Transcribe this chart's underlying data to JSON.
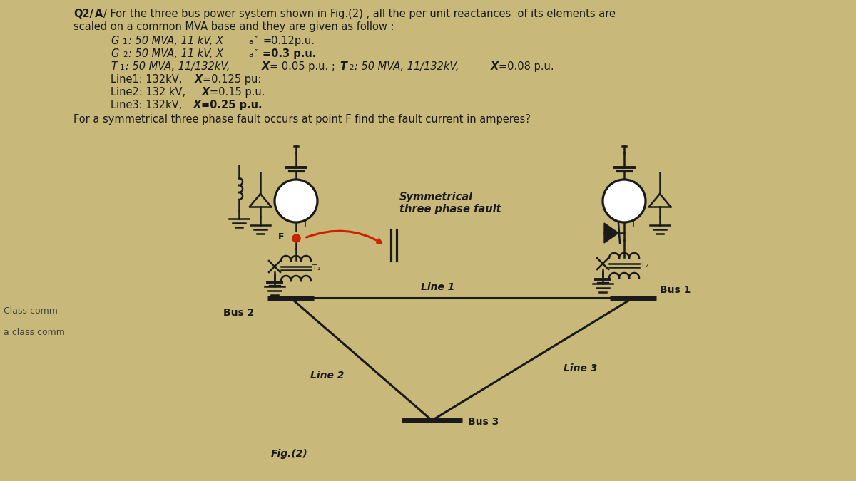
{
  "bg_color": "#c8b87a",
  "text_color": "#1a1a1a",
  "bus1_label": "Bus 1",
  "bus2_label": "Bus 2",
  "bus3_label": "Bus 3",
  "line1_label": "Line 1",
  "line2_label": "Line 2",
  "line3_label": "Line 3",
  "g1_label": "G₁",
  "g2_label": "G₂",
  "t1_label": "T₁",
  "t2_label": "T₂",
  "fault_label": "Symmetrical\nthree phase fault",
  "fig_label": "Fig.(2)",
  "class_comm1": "Class comm",
  "class_comm2": "a class comm",
  "fault_point": "F",
  "comp_color": "#1a1a1a",
  "red_color": "#cc2200"
}
